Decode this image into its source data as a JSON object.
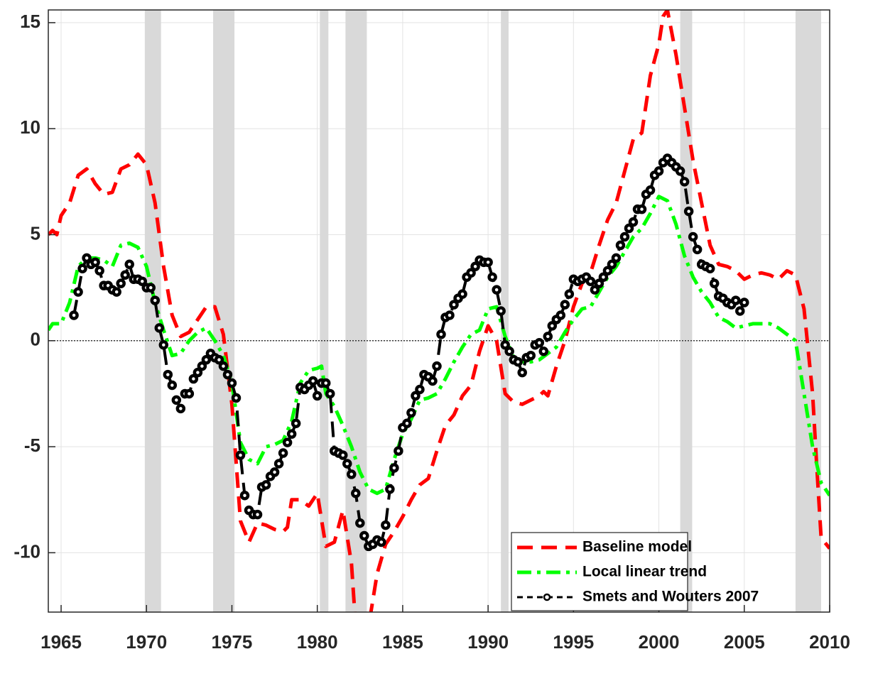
{
  "chart_data": {
    "type": "line",
    "xlim": [
      1964.25,
      2010
    ],
    "ylim": [
      -12.8,
      15.6
    ],
    "xticks": [
      1965,
      1970,
      1975,
      1980,
      1985,
      1990,
      1995,
      2000,
      2005,
      2010
    ],
    "yticks": [
      -10,
      -5,
      0,
      5,
      10,
      15
    ],
    "grid": true,
    "reference_line": 0,
    "legend_position": "lower right",
    "recession_color": "#d9d9d9",
    "recessions": [
      [
        1969.9,
        1970.85
      ],
      [
        1973.9,
        1975.15
      ],
      [
        1980.15,
        1980.65
      ],
      [
        1981.65,
        1982.9
      ],
      [
        1990.75,
        1991.2
      ],
      [
        2001.25,
        2001.95
      ],
      [
        2008.0,
        2009.5
      ]
    ],
    "series": [
      {
        "name": "Baseline model",
        "color": "#ff0000",
        "linestyle": "--",
        "x": [
          1964.25,
          1964.5,
          1964.75,
          1965.0,
          1965.5,
          1966.0,
          1966.5,
          1967.0,
          1967.5,
          1968.0,
          1968.5,
          1969.0,
          1969.5,
          1970.0,
          1970.5,
          1971.0,
          1971.5,
          1972.0,
          1972.5,
          1973.0,
          1973.5,
          1974.0,
          1974.5,
          1975.0,
          1975.5,
          1976.0,
          1976.5,
          1977.0,
          1977.5,
          1978.0,
          1978.25,
          1978.5,
          1979.0,
          1979.5,
          1980.0,
          1980.5,
          1981.0,
          1981.5,
          1982.0,
          1982.25,
          1982.75,
          1983.0,
          1983.5,
          1984.0,
          1984.5,
          1985.0,
          1985.5,
          1986.0,
          1986.5,
          1987.0,
          1987.5,
          1988.0,
          1988.5,
          1989.0,
          1989.5,
          1990.0,
          1990.5,
          1991.0,
          1991.5,
          1992.0,
          1992.5,
          1993.0,
          1993.25,
          1993.5,
          1994.0,
          1994.5,
          1995.0,
          1995.5,
          1996.0,
          1996.5,
          1997.0,
          1997.5,
          1998.0,
          1998.5,
          1999.0,
          1999.5,
          2000.0,
          2000.25,
          2000.5,
          2001.0,
          2001.5,
          2002.0,
          2002.5,
          2003.0,
          2003.5,
          2004.0,
          2004.5,
          2005.0,
          2005.5,
          2006.0,
          2006.5,
          2007.0,
          2007.5,
          2008.0,
          2008.5,
          2009.0,
          2009.25,
          2009.5,
          2010.0
        ],
        "values": [
          5.0,
          5.2,
          5.0,
          5.9,
          6.5,
          7.8,
          8.1,
          7.4,
          6.9,
          7.0,
          8.1,
          8.3,
          8.8,
          8.3,
          6.5,
          3.5,
          1.2,
          0.2,
          0.4,
          1.0,
          1.6,
          1.6,
          0.3,
          -3.0,
          -8.5,
          -9.5,
          -8.6,
          -8.7,
          -8.9,
          -9.0,
          -8.8,
          -7.5,
          -7.5,
          -7.8,
          -7.2,
          -9.7,
          -9.5,
          -8.0,
          -10.5,
          -13.5,
          -14.0,
          -13.5,
          -11.0,
          -9.6,
          -9.0,
          -8.3,
          -7.5,
          -6.8,
          -6.5,
          -5.2,
          -4.0,
          -3.5,
          -2.6,
          -2.1,
          -0.5,
          0.7,
          0.0,
          -2.5,
          -2.9,
          -3.0,
          -2.8,
          -2.6,
          -2.4,
          -2.6,
          -1.2,
          0.0,
          1.6,
          2.7,
          3.2,
          4.5,
          5.7,
          6.5,
          8.0,
          9.5,
          9.8,
          12.5,
          14.0,
          15.3,
          15.6,
          13.5,
          11.0,
          8.5,
          6.5,
          4.5,
          3.6,
          3.5,
          3.3,
          2.9,
          3.1,
          3.2,
          3.1,
          2.9,
          3.3,
          3.1,
          1.5,
          -2.5,
          -6.0,
          -9.3,
          -9.8
        ]
      },
      {
        "name": "Local linear trend",
        "color": "#00ff00",
        "linestyle": "-.",
        "x": [
          1964.25,
          1964.5,
          1965.0,
          1965.5,
          1966.0,
          1966.5,
          1967.0,
          1967.5,
          1968.0,
          1968.5,
          1969.0,
          1969.5,
          1970.0,
          1970.5,
          1971.0,
          1971.5,
          1972.0,
          1972.5,
          1973.0,
          1973.5,
          1974.0,
          1974.5,
          1975.0,
          1975.5,
          1976.0,
          1976.5,
          1977.0,
          1977.5,
          1978.0,
          1978.5,
          1979.0,
          1979.5,
          1980.0,
          1980.25,
          1980.5,
          1981.0,
          1981.5,
          1982.0,
          1982.5,
          1983.0,
          1983.5,
          1984.0,
          1984.5,
          1985.0,
          1985.5,
          1986.0,
          1986.5,
          1987.0,
          1987.5,
          1988.0,
          1988.5,
          1989.0,
          1989.5,
          1990.0,
          1990.5,
          1991.0,
          1991.5,
          1992.0,
          1992.5,
          1993.0,
          1993.5,
          1994.0,
          1994.5,
          1995.0,
          1995.5,
          1996.0,
          1996.5,
          1997.0,
          1997.5,
          1998.0,
          1998.5,
          1999.0,
          1999.5,
          2000.0,
          2000.5,
          2001.0,
          2001.5,
          2002.0,
          2002.5,
          2003.0,
          2003.5,
          2004.0,
          2004.5,
          2005.0,
          2005.5,
          2006.0,
          2006.5,
          2007.0,
          2007.5,
          2008.0,
          2008.5,
          2009.0,
          2009.5,
          2010.0
        ],
        "values": [
          0.5,
          0.8,
          0.8,
          1.8,
          3.5,
          3.9,
          3.9,
          3.8,
          3.5,
          4.5,
          4.6,
          4.4,
          3.5,
          1.8,
          0.5,
          -0.7,
          -0.6,
          0.0,
          0.4,
          0.6,
          0.0,
          -0.7,
          -2.0,
          -4.8,
          -5.6,
          -5.8,
          -5.0,
          -4.9,
          -4.7,
          -3.8,
          -2.0,
          -1.4,
          -1.3,
          -1.2,
          -2.5,
          -3.1,
          -4.0,
          -5.0,
          -6.2,
          -7.0,
          -7.2,
          -7.0,
          -5.6,
          -4.4,
          -3.7,
          -2.8,
          -2.7,
          -2.5,
          -1.8,
          -1.0,
          -0.3,
          0.3,
          0.5,
          1.5,
          1.6,
          0.2,
          -0.8,
          -1.0,
          -1.0,
          -0.9,
          -0.6,
          -0.3,
          0.4,
          1.0,
          1.5,
          1.6,
          2.3,
          3.0,
          3.5,
          4.2,
          4.9,
          5.3,
          6.0,
          6.8,
          6.6,
          5.5,
          4.0,
          3.0,
          2.3,
          1.8,
          1.1,
          0.9,
          0.6,
          0.7,
          0.8,
          0.8,
          0.8,
          0.6,
          0.3,
          0.0,
          -2.5,
          -5.0,
          -6.7,
          -7.3
        ]
      },
      {
        "name": "Smets and Wouters 2007",
        "color": "#000000",
        "linestyle": "--",
        "marker": "o",
        "x": [
          1965.75,
          1966.0,
          1966.25,
          1966.5,
          1966.75,
          1967.0,
          1967.25,
          1967.5,
          1967.75,
          1968.0,
          1968.25,
          1968.5,
          1968.75,
          1969.0,
          1969.25,
          1969.5,
          1969.75,
          1970.0,
          1970.25,
          1970.5,
          1970.75,
          1971.0,
          1971.25,
          1971.5,
          1971.75,
          1972.0,
          1972.25,
          1972.5,
          1972.75,
          1973.0,
          1973.25,
          1973.5,
          1973.75,
          1974.0,
          1974.25,
          1974.5,
          1974.75,
          1975.0,
          1975.25,
          1975.5,
          1975.75,
          1976.0,
          1976.25,
          1976.5,
          1976.75,
          1977.0,
          1977.25,
          1977.5,
          1977.75,
          1978.0,
          1978.25,
          1978.5,
          1978.75,
          1979.0,
          1979.25,
          1979.5,
          1979.75,
          1980.0,
          1980.25,
          1980.5,
          1980.75,
          1981.0,
          1981.25,
          1981.5,
          1981.75,
          1982.0,
          1982.25,
          1982.5,
          1982.75,
          1983.0,
          1983.25,
          1983.5,
          1983.75,
          1984.0,
          1984.25,
          1984.5,
          1984.75,
          1985.0,
          1985.25,
          1985.5,
          1985.75,
          1986.0,
          1986.25,
          1986.5,
          1986.75,
          1987.0,
          1987.25,
          1987.5,
          1987.75,
          1988.0,
          1988.25,
          1988.5,
          1988.75,
          1989.0,
          1989.25,
          1989.5,
          1989.75,
          1990.0,
          1990.25,
          1990.5,
          1990.75,
          1991.0,
          1991.25,
          1991.5,
          1991.75,
          1992.0,
          1992.25,
          1992.5,
          1992.75,
          1993.0,
          1993.25,
          1993.5,
          1993.75,
          1994.0,
          1994.25,
          1994.5,
          1994.75,
          1995.0,
          1995.25,
          1995.5,
          1995.75,
          1996.0,
          1996.25,
          1996.5,
          1996.75,
          1997.0,
          1997.25,
          1997.5,
          1997.75,
          1998.0,
          1998.25,
          1998.5,
          1998.75,
          1999.0,
          1999.25,
          1999.5,
          1999.75,
          2000.0,
          2000.25,
          2000.5,
          2000.75,
          2001.0,
          2001.25,
          2001.5,
          2001.75,
          2002.0,
          2002.25,
          2002.5,
          2002.75,
          2003.0,
          2003.25,
          2003.5,
          2003.75,
          2004.0,
          2004.25,
          2004.5,
          2004.75,
          2005.0
        ],
        "values": [
          1.2,
          2.3,
          3.4,
          3.9,
          3.6,
          3.7,
          3.3,
          2.6,
          2.6,
          2.4,
          2.3,
          2.7,
          3.1,
          3.6,
          2.9,
          2.9,
          2.8,
          2.5,
          2.5,
          1.9,
          0.6,
          -0.2,
          -1.6,
          -2.1,
          -2.8,
          -3.2,
          -2.5,
          -2.5,
          -1.8,
          -1.5,
          -1.2,
          -0.9,
          -0.6,
          -0.8,
          -0.9,
          -1.2,
          -1.6,
          -2.0,
          -2.7,
          -5.4,
          -7.3,
          -8.0,
          -8.2,
          -8.2,
          -6.9,
          -6.8,
          -6.4,
          -6.2,
          -5.8,
          -5.3,
          -4.8,
          -4.4,
          -3.9,
          -2.2,
          -2.3,
          -2.1,
          -1.9,
          -2.6,
          -2.0,
          -2.0,
          -2.5,
          -5.2,
          -5.3,
          -5.4,
          -5.8,
          -6.3,
          -7.2,
          -8.6,
          -9.2,
          -9.7,
          -9.6,
          -9.4,
          -9.5,
          -8.7,
          -7.0,
          -6.0,
          -5.2,
          -4.1,
          -3.9,
          -3.4,
          -2.6,
          -2.3,
          -1.6,
          -1.7,
          -1.9,
          -1.2,
          0.3,
          1.1,
          1.2,
          1.7,
          2.0,
          2.2,
          3.0,
          3.2,
          3.5,
          3.8,
          3.7,
          3.7,
          3.0,
          2.4,
          1.4,
          -0.2,
          -0.5,
          -0.9,
          -1.0,
          -1.5,
          -0.8,
          -0.7,
          -0.2,
          -0.1,
          -0.5,
          0.2,
          0.7,
          1.0,
          1.2,
          1.7,
          2.2,
          2.9,
          2.8,
          2.9,
          3.0,
          2.8,
          2.4,
          2.7,
          3.0,
          3.3,
          3.6,
          3.9,
          4.5,
          4.9,
          5.3,
          5.6,
          6.2,
          6.2,
          6.9,
          7.1,
          7.8,
          8.0,
          8.4,
          8.6,
          8.4,
          8.2,
          8.0,
          7.5,
          6.1,
          4.9,
          4.3,
          3.6,
          3.5,
          3.4,
          2.7,
          2.1,
          2.0,
          1.8,
          1.7,
          1.9,
          1.4,
          1.8
        ]
      }
    ]
  }
}
